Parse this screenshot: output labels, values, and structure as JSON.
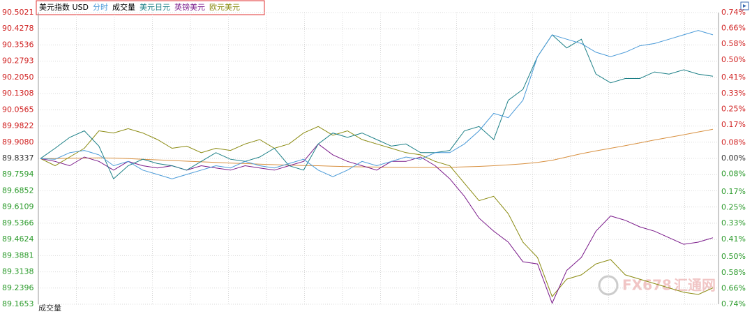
{
  "chart_data": {
    "type": "line",
    "title": "美元指数 USD",
    "legend_volume": "成交量",
    "volume_panel_title": "成交量",
    "watermark": {
      "brand": "FX678",
      "site": "汇通网"
    },
    "x": [
      0,
      1,
      2,
      3,
      4,
      5,
      6,
      7,
      8,
      9,
      10,
      11,
      12,
      13,
      14,
      15,
      16,
      17,
      18,
      19,
      20,
      21,
      22,
      23,
      24,
      25,
      26,
      27,
      28,
      29,
      30,
      31,
      32,
      33,
      34,
      35,
      36,
      37,
      38,
      39,
      40,
      41,
      42,
      43,
      44,
      45,
      46
    ],
    "xlim": [
      0,
      46
    ],
    "ylim": [
      89.1653,
      90.5021
    ],
    "yticks": [
      90.5021,
      90.4278,
      90.3536,
      90.2793,
      {
        "value": 90.205,
        "label": "90.2050"
      },
      90.1308,
      90.0565,
      89.9822,
      {
        "value": 89.908,
        "label": "89.9080"
      },
      89.8337,
      89.7594,
      89.6852,
      89.6109,
      89.5366,
      89.4624,
      89.3881,
      89.3138,
      89.2396,
      89.1653
    ],
    "y2lim": [
      -0.74,
      0.74
    ],
    "y2ticks": [
      {
        "value": 0.74,
        "label": "0.74%"
      },
      {
        "value": 0.66,
        "label": "0.66%"
      },
      {
        "value": 0.58,
        "label": "0.58%"
      },
      {
        "value": 0.5,
        "label": "0.50%"
      },
      {
        "value": 0.41,
        "label": "0.41%"
      },
      {
        "value": 0.33,
        "label": "0.33%"
      },
      {
        "value": 0.25,
        "label": "0.25%"
      },
      {
        "value": 0.17,
        "label": "0.17%"
      },
      {
        "value": 0.08,
        "label": "0.08%"
      },
      {
        "value": 0,
        "label": "0.00%"
      },
      {
        "value": -0.08,
        "label": "0.08%"
      },
      {
        "value": -0.17,
        "label": "0.17%"
      },
      {
        "value": -0.25,
        "label": "0.25%"
      },
      {
        "value": -0.33,
        "label": "0.33%"
      },
      {
        "value": -0.41,
        "label": "0.41%"
      },
      {
        "value": -0.5,
        "label": "0.50%"
      },
      {
        "value": -0.58,
        "label": "0.58%"
      },
      {
        "value": -0.66,
        "label": "0.66%"
      },
      {
        "value": -0.74,
        "label": "0.74%"
      }
    ],
    "grid": true,
    "up_color": "#d02020",
    "down_color": "#2a9a2a",
    "series": [
      {
        "color": "#d89040",
        "values": [
          89.833,
          89.833,
          89.834,
          89.835,
          89.836,
          89.835,
          89.833,
          89.83,
          89.827,
          89.824,
          89.821,
          89.818,
          89.815,
          89.812,
          89.81,
          89.807,
          89.805,
          89.803,
          89.801,
          89.8,
          89.798,
          89.796,
          89.795,
          89.794,
          89.793,
          89.792,
          89.792,
          89.792,
          89.793,
          89.795,
          89.797,
          89.8,
          89.804,
          89.809,
          89.815,
          89.825,
          89.84,
          89.855,
          89.868,
          89.88,
          89.892,
          89.905,
          89.918,
          89.93,
          89.942,
          89.955,
          89.967
        ]
      },
      {
        "name": "欧元美元",
        "color": "#8a8a10",
        "values": [
          89.833,
          89.8,
          89.84,
          89.88,
          89.96,
          89.95,
          89.97,
          89.95,
          89.92,
          89.88,
          89.89,
          89.86,
          89.88,
          89.87,
          89.9,
          89.92,
          89.88,
          89.9,
          89.95,
          89.98,
          89.94,
          89.96,
          89.92,
          89.9,
          89.88,
          89.86,
          89.85,
          89.82,
          89.8,
          89.72,
          89.64,
          89.66,
          89.58,
          89.45,
          89.38,
          89.2,
          89.28,
          89.3,
          89.35,
          89.37,
          89.3,
          89.28,
          89.26,
          89.24,
          89.22,
          89.21,
          89.24
        ]
      },
      {
        "name": "英镑美元",
        "color": "#7a1a8a",
        "values": [
          89.833,
          89.82,
          89.8,
          89.84,
          89.82,
          89.78,
          89.82,
          89.8,
          89.79,
          89.8,
          89.78,
          89.8,
          89.79,
          89.78,
          89.8,
          89.79,
          89.78,
          89.8,
          89.82,
          89.9,
          89.85,
          89.82,
          89.8,
          89.78,
          89.82,
          89.82,
          89.84,
          89.8,
          89.74,
          89.66,
          89.56,
          89.5,
          89.45,
          89.36,
          89.35,
          89.17,
          89.32,
          89.38,
          89.5,
          89.57,
          89.55,
          89.52,
          89.5,
          89.47,
          89.44,
          89.45,
          89.47
        ]
      },
      {
        "name": "美元日元",
        "color": "#1b7f86",
        "values": [
          89.833,
          89.88,
          89.93,
          89.96,
          89.89,
          89.74,
          89.8,
          89.83,
          89.81,
          89.8,
          89.78,
          89.82,
          89.86,
          89.83,
          89.82,
          89.84,
          89.88,
          89.8,
          89.78,
          89.9,
          89.95,
          89.93,
          89.95,
          89.92,
          89.89,
          89.9,
          89.86,
          89.86,
          89.87,
          89.96,
          89.98,
          89.92,
          90.1,
          90.15,
          90.3,
          90.4,
          90.34,
          90.38,
          90.22,
          90.18,
          90.2,
          90.2,
          90.23,
          90.22,
          90.24,
          90.22,
          90.21
        ]
      },
      {
        "name": "分时",
        "color": "#4a9ad8",
        "values": [
          89.833,
          89.83,
          89.86,
          89.87,
          89.85,
          89.8,
          89.82,
          89.78,
          89.76,
          89.74,
          89.76,
          89.78,
          89.8,
          89.79,
          89.82,
          89.8,
          89.79,
          89.81,
          89.83,
          89.78,
          89.75,
          89.78,
          89.82,
          89.8,
          89.82,
          89.84,
          89.83,
          89.86,
          89.86,
          89.9,
          89.96,
          90.04,
          90.02,
          90.1,
          90.3,
          90.4,
          90.38,
          90.36,
          90.32,
          90.3,
          90.32,
          90.35,
          90.36,
          90.38,
          90.4,
          90.42,
          90.4
        ]
      }
    ]
  }
}
